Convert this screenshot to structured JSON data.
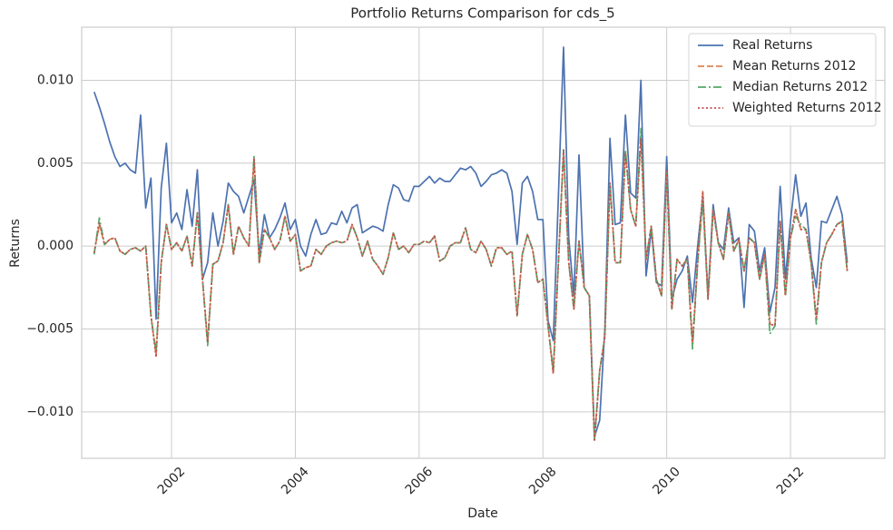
{
  "chart_data": {
    "type": "line",
    "title": "Portfolio Returns Comparison for cds_5",
    "x_label": "Date",
    "y_label": "Returns",
    "legend": "upper right",
    "grid": true,
    "xlim": [
      2000.548,
      2013.524
    ],
    "xticks": [
      2002,
      2004,
      2006,
      2008,
      2010,
      2012
    ],
    "ylim": [
      -0.0128,
      0.0132
    ],
    "yticks": [
      {
        "value": -0.01,
        "label": "−0.010"
      },
      {
        "value": -0.005,
        "label": "−0.005"
      },
      {
        "value": 0,
        "label": "0.000"
      },
      {
        "value": 0.005,
        "label": "0.005"
      },
      {
        "value": 0.01,
        "label": "0.010"
      }
    ],
    "x": [
      2000.75,
      2000.833,
      2000.917,
      2001.0,
      2001.083,
      2001.167,
      2001.25,
      2001.333,
      2001.417,
      2001.5,
      2001.583,
      2001.667,
      2001.75,
      2001.833,
      2001.917,
      2002.0,
      2002.083,
      2002.167,
      2002.25,
      2002.333,
      2002.417,
      2002.5,
      2002.583,
      2002.667,
      2002.75,
      2002.833,
      2002.917,
      2003.0,
      2003.083,
      2003.167,
      2003.25,
      2003.333,
      2003.417,
      2003.5,
      2003.583,
      2003.667,
      2003.75,
      2003.833,
      2003.917,
      2004.0,
      2004.083,
      2004.167,
      2004.25,
      2004.333,
      2004.417,
      2004.5,
      2004.583,
      2004.667,
      2004.75,
      2004.833,
      2004.917,
      2005.0,
      2005.083,
      2005.167,
      2005.25,
      2005.333,
      2005.417,
      2005.5,
      2005.583,
      2005.667,
      2005.75,
      2005.833,
      2005.917,
      2006.0,
      2006.083,
      2006.167,
      2006.25,
      2006.333,
      2006.417,
      2006.5,
      2006.583,
      2006.667,
      2006.75,
      2006.833,
      2006.917,
      2007.0,
      2007.083,
      2007.167,
      2007.25,
      2007.333,
      2007.417,
      2007.5,
      2007.583,
      2007.667,
      2007.75,
      2007.833,
      2007.917,
      2008.0,
      2008.083,
      2008.167,
      2008.25,
      2008.333,
      2008.417,
      2008.5,
      2008.583,
      2008.667,
      2008.75,
      2008.833,
      2008.917,
      2009.0,
      2009.083,
      2009.167,
      2009.25,
      2009.333,
      2009.417,
      2009.5,
      2009.583,
      2009.667,
      2009.75,
      2009.833,
      2009.917,
      2010.0,
      2010.083,
      2010.167,
      2010.25,
      2010.333,
      2010.417,
      2010.5,
      2010.583,
      2010.667,
      2010.75,
      2010.833,
      2010.917,
      2011.0,
      2011.083,
      2011.167,
      2011.25,
      2011.333,
      2011.417,
      2011.5,
      2011.583,
      2011.667,
      2011.75,
      2011.833,
      2011.917,
      2012.0,
      2012.083,
      2012.167,
      2012.25,
      2012.333,
      2012.417,
      2012.5,
      2012.583,
      2012.667,
      2012.75,
      2012.833,
      2012.917
    ],
    "series": [
      {
        "name": "Real Returns",
        "color": "#4c72b0",
        "style": "solid",
        "values": [
          0.0093,
          0.0084,
          0.0074,
          0.0063,
          0.0054,
          0.0048,
          0.005,
          0.0046,
          0.0044,
          0.0079,
          0.0023,
          0.0041,
          -0.0044,
          0.0035,
          0.0062,
          0.0014,
          0.002,
          0.001,
          0.0034,
          0.0012,
          0.0046,
          -0.002,
          -0.001,
          0.002,
          0.0,
          0.0015,
          0.0038,
          0.0033,
          0.003,
          0.002,
          0.003,
          0.004,
          -0.0005,
          0.0019,
          0.0005,
          0.001,
          0.0017,
          0.0026,
          0.001,
          0.0016,
          0.0,
          -0.0006,
          0.0007,
          0.0016,
          0.0007,
          0.0008,
          0.0014,
          0.0013,
          0.0021,
          0.0014,
          0.0023,
          0.0025,
          0.0008,
          0.001,
          0.0012,
          0.0011,
          0.0009,
          0.0025,
          0.0037,
          0.0035,
          0.0028,
          0.0027,
          0.0036,
          0.0036,
          0.0039,
          0.0042,
          0.0038,
          0.0041,
          0.0039,
          0.0039,
          0.0043,
          0.0047,
          0.0046,
          0.0048,
          0.0044,
          0.0036,
          0.0039,
          0.0043,
          0.0044,
          0.0046,
          0.0044,
          0.0033,
          0.0001,
          0.0038,
          0.0042,
          0.0033,
          0.0016,
          0.0016,
          -0.0045,
          -0.0057,
          0.003,
          0.012,
          0.0005,
          -0.003,
          0.0055,
          -0.0025,
          -0.003,
          -0.0115,
          -0.0105,
          -0.005,
          0.0065,
          0.0013,
          0.0014,
          0.0079,
          0.0032,
          0.0029,
          0.01,
          -0.0018,
          0.001,
          -0.0022,
          -0.0024,
          0.0054,
          -0.0032,
          -0.002,
          -0.0015,
          -0.0006,
          -0.0034,
          0.0,
          0.003,
          -0.003,
          0.0025,
          0.0002,
          -0.0002,
          0.0023,
          0.0002,
          0.0005,
          -0.0037,
          0.0013,
          0.0009,
          -0.0015,
          -0.0001,
          -0.004,
          -0.0025,
          0.0036,
          -0.002,
          0.0015,
          0.0043,
          0.0018,
          0.0026,
          -0.0007,
          -0.0025,
          0.0015,
          0.0014,
          0.0022,
          0.003,
          0.0019,
          -0.001
        ]
      },
      {
        "name": "Mean Returns 2012",
        "color": "#dd8452",
        "style": "dashed",
        "values": [
          -0.0004,
          0.0013,
          0.0001,
          0.0004,
          0.0005,
          -0.0003,
          -0.0005,
          -0.0002,
          -0.0001,
          -0.0003,
          0.0,
          -0.0042,
          -0.0066,
          -0.001,
          0.0013,
          -0.0002,
          0.0002,
          -0.0003,
          0.0006,
          -0.0012,
          0.002,
          -0.002,
          -0.0058,
          -0.0011,
          -0.0009,
          0.0002,
          0.0025,
          -0.0005,
          0.0012,
          0.0005,
          0.0,
          0.0053,
          -0.001,
          0.001,
          0.0005,
          -0.0002,
          0.0003,
          0.0018,
          0.0003,
          0.0007,
          -0.0015,
          -0.0013,
          -0.0012,
          -0.0002,
          -0.0005,
          0.0,
          0.0002,
          0.0003,
          0.0002,
          0.0003,
          0.0013,
          0.0005,
          -0.0006,
          0.0003,
          -0.0008,
          -0.0012,
          -0.0017,
          -0.0007,
          0.0008,
          -0.0002,
          0.0,
          -0.0004,
          0.0001,
          0.0001,
          0.0003,
          0.0002,
          0.0006,
          -0.0009,
          -0.0007,
          0.0,
          0.0002,
          0.0002,
          0.0011,
          -0.0002,
          -0.0004,
          0.0003,
          -0.0002,
          -0.0012,
          -0.0001,
          -0.0001,
          -0.0005,
          -0.0003,
          -0.0042,
          -0.0005,
          0.0007,
          -0.0002,
          -0.0022,
          -0.002,
          -0.0048,
          -0.0077,
          -0.001,
          0.0058,
          -0.001,
          -0.0038,
          0.0003,
          -0.0025,
          -0.003,
          -0.0117,
          -0.0075,
          -0.0055,
          0.0038,
          -0.001,
          -0.001,
          0.0058,
          0.0022,
          0.0012,
          0.0065,
          -0.0008,
          0.0012,
          -0.002,
          -0.003,
          0.0045,
          -0.0038,
          -0.0008,
          -0.0012,
          -0.0008,
          -0.006,
          -0.001,
          0.0033,
          -0.0032,
          0.0022,
          0.0002,
          -0.0008,
          0.002,
          -0.0003,
          0.0004,
          -0.0015,
          0.0005,
          0.0002,
          -0.002,
          -0.0005,
          -0.0047,
          -0.0048,
          0.0015,
          -0.003,
          0.0005,
          0.0022,
          0.001,
          0.001,
          -0.001,
          -0.0045,
          -0.001,
          0.0002,
          0.0007,
          0.0013,
          0.0015,
          -0.0015
        ]
      },
      {
        "name": "Median Returns 2012",
        "color": "#55a868",
        "style": "dashdot",
        "values": [
          -0.0005,
          0.0017,
          0.0001,
          0.0004,
          0.0005,
          -0.0003,
          -0.0005,
          -0.0002,
          -0.0001,
          -0.0003,
          0.0,
          -0.0042,
          -0.0064,
          -0.001,
          0.0013,
          -0.0002,
          0.0002,
          -0.0003,
          0.0006,
          -0.0012,
          0.002,
          -0.002,
          -0.006,
          -0.0011,
          -0.0009,
          0.0002,
          0.0025,
          -0.0005,
          0.0012,
          0.0005,
          0.0,
          0.0054,
          -0.001,
          0.001,
          0.0005,
          -0.0002,
          0.0003,
          0.0018,
          0.0003,
          0.0007,
          -0.0015,
          -0.0013,
          -0.0012,
          -0.0002,
          -0.0005,
          0.0,
          0.0002,
          0.0003,
          0.0002,
          0.0003,
          0.0013,
          0.0005,
          -0.0006,
          0.0003,
          -0.0008,
          -0.0012,
          -0.0017,
          -0.0007,
          0.0008,
          -0.0002,
          0.0,
          -0.0004,
          0.0001,
          0.0001,
          0.0003,
          0.0002,
          0.0006,
          -0.0009,
          -0.0007,
          0.0,
          0.0002,
          0.0002,
          0.0011,
          -0.0002,
          -0.0004,
          0.0003,
          -0.0002,
          -0.0012,
          -0.0001,
          -0.0001,
          -0.0005,
          -0.0003,
          -0.0042,
          -0.0005,
          0.0007,
          -0.0002,
          -0.0022,
          -0.002,
          -0.0048,
          -0.0075,
          -0.001,
          0.0058,
          -0.001,
          -0.0038,
          0.0003,
          -0.0025,
          -0.003,
          -0.0117,
          -0.0075,
          -0.0055,
          0.0038,
          -0.001,
          -0.001,
          0.0058,
          0.0022,
          0.0012,
          0.0071,
          -0.0008,
          0.0012,
          -0.002,
          -0.003,
          0.0045,
          -0.0038,
          -0.0008,
          -0.0012,
          -0.0008,
          -0.0062,
          -0.001,
          0.0027,
          -0.0032,
          0.0022,
          0.0002,
          -0.0008,
          0.002,
          -0.0003,
          0.0004,
          -0.0015,
          0.0005,
          0.0002,
          -0.002,
          -0.0005,
          -0.0053,
          -0.0048,
          0.0015,
          -0.003,
          0.0005,
          0.0018,
          0.0013,
          0.001,
          -0.001,
          -0.0047,
          -0.001,
          0.0002,
          0.0007,
          0.0013,
          0.0015,
          -0.0015
        ]
      },
      {
        "name": "Weighted Returns 2012",
        "color": "#c44e52",
        "style": "dotted",
        "values": [
          -0.0004,
          0.0014,
          0.0001,
          0.0004,
          0.0005,
          -0.0003,
          -0.0005,
          -0.0002,
          -0.0001,
          -0.0003,
          0.0,
          -0.0042,
          -0.0067,
          -0.001,
          0.0013,
          -0.0002,
          0.0002,
          -0.0003,
          0.0006,
          -0.0012,
          0.002,
          -0.002,
          -0.0058,
          -0.0011,
          -0.0009,
          0.0002,
          0.0025,
          -0.0005,
          0.0012,
          0.0005,
          0.0,
          0.0053,
          -0.001,
          0.001,
          0.0005,
          -0.0002,
          0.0003,
          0.0018,
          0.0003,
          0.0007,
          -0.0015,
          -0.0013,
          -0.0012,
          -0.0002,
          -0.0005,
          0.0,
          0.0002,
          0.0003,
          0.0002,
          0.0003,
          0.0013,
          0.0005,
          -0.0006,
          0.0003,
          -0.0008,
          -0.0012,
          -0.0017,
          -0.0007,
          0.0008,
          -0.0002,
          0.0,
          -0.0004,
          0.0001,
          0.0001,
          0.0003,
          0.0002,
          0.0006,
          -0.0009,
          -0.0007,
          0.0,
          0.0002,
          0.0002,
          0.0011,
          -0.0002,
          -0.0004,
          0.0003,
          -0.0002,
          -0.0012,
          -0.0001,
          -0.0001,
          -0.0005,
          -0.0003,
          -0.0042,
          -0.0005,
          0.0007,
          -0.0002,
          -0.0022,
          -0.002,
          -0.0048,
          -0.0077,
          -0.001,
          0.0058,
          -0.001,
          -0.0038,
          0.0003,
          -0.0025,
          -0.003,
          -0.0118,
          -0.0075,
          -0.0055,
          0.0038,
          -0.001,
          -0.001,
          0.0056,
          0.0022,
          0.0012,
          0.0065,
          -0.0008,
          0.0012,
          -0.002,
          -0.003,
          0.0045,
          -0.0038,
          -0.0008,
          -0.0012,
          -0.0008,
          -0.0058,
          -0.001,
          0.0033,
          -0.0032,
          0.0022,
          0.0002,
          -0.0008,
          0.002,
          -0.0003,
          0.0004,
          -0.0015,
          0.0005,
          0.0002,
          -0.002,
          -0.0005,
          -0.0047,
          -0.0048,
          0.0015,
          -0.003,
          0.0005,
          0.0022,
          0.001,
          0.001,
          -0.001,
          -0.0043,
          -0.001,
          0.0002,
          0.0007,
          0.0013,
          0.0015,
          -0.0015
        ]
      }
    ]
  }
}
